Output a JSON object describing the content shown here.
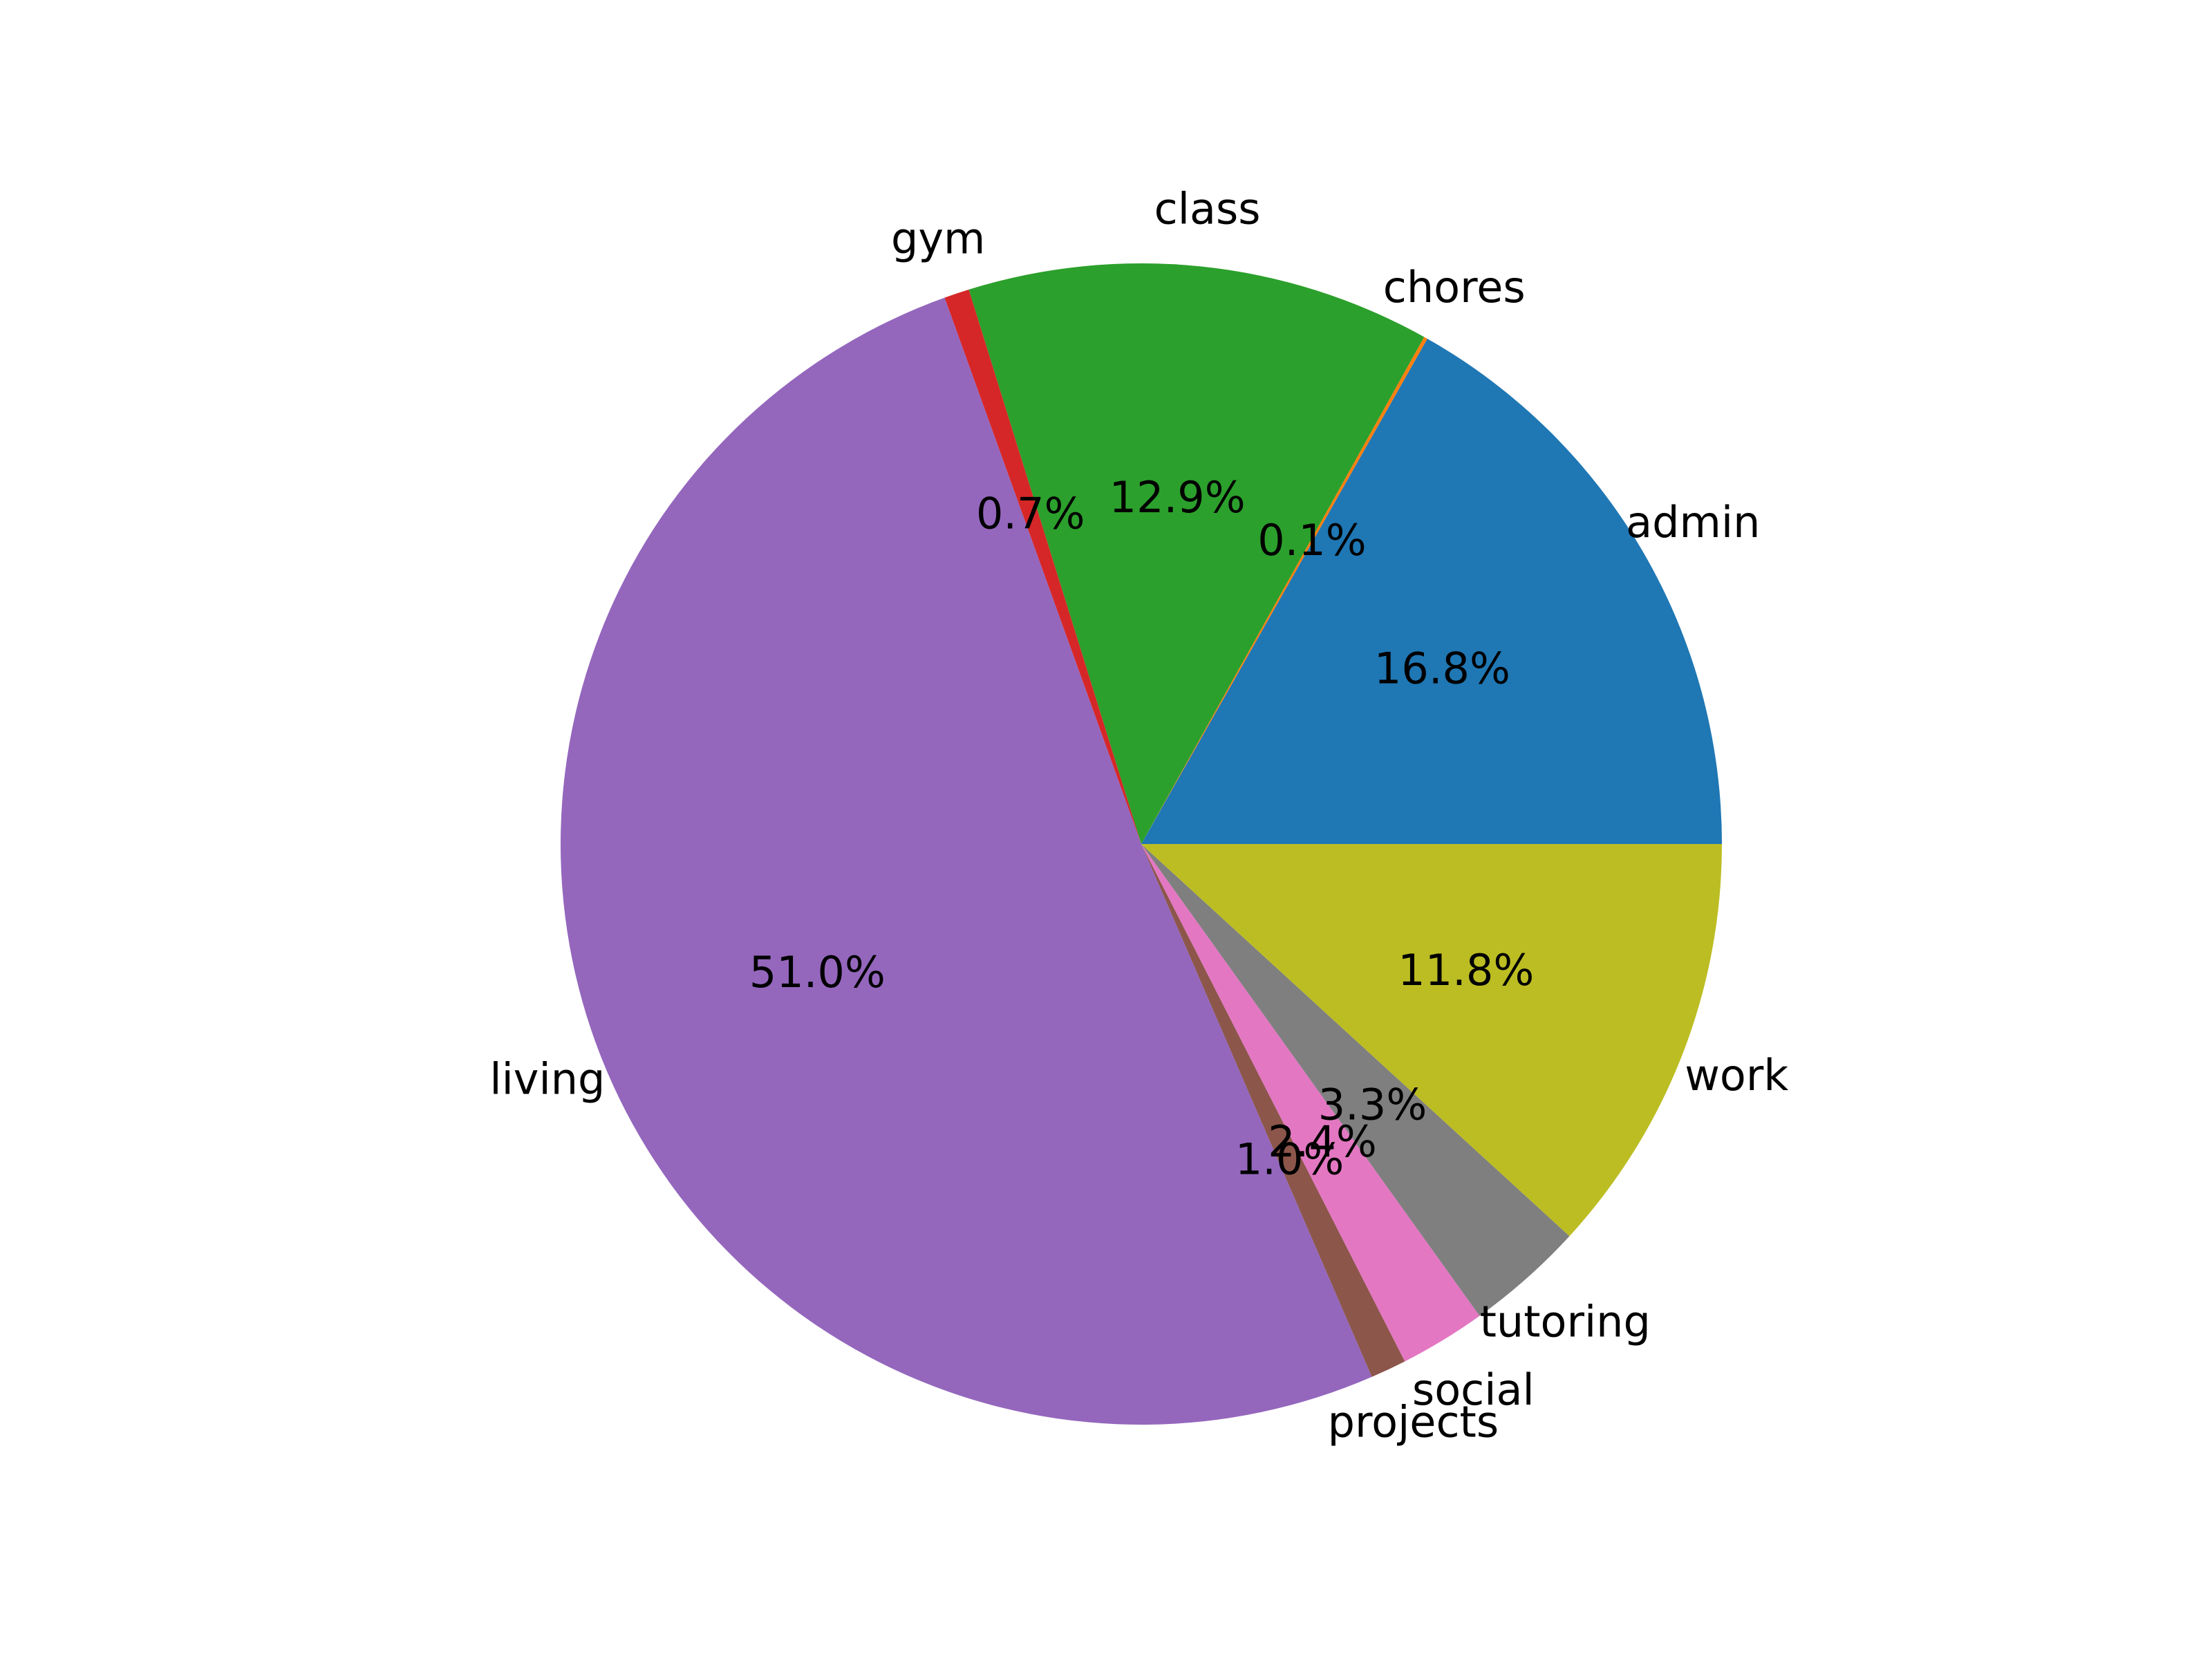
{
  "chart_data": {
    "type": "pie",
    "start_angle_deg": 0,
    "direction": "counterclockwise",
    "categories": [
      "admin",
      "chores",
      "class",
      "gym",
      "living",
      "projects",
      "social",
      "tutoring",
      "work"
    ],
    "values": [
      16.8,
      0.1,
      12.9,
      0.7,
      51.0,
      1.0,
      2.4,
      3.3,
      11.8
    ],
    "value_labels": [
      "16.8%",
      "0.1%",
      "12.9%",
      "0.7%",
      "51.0%",
      "1.0%",
      "2.4%",
      "3.3%",
      "11.8%"
    ],
    "colors": [
      "#1f77b4",
      "#ff7f0e",
      "#2ca02c",
      "#d62728",
      "#9467bd",
      "#8c564b",
      "#e377c2",
      "#7f7f7f",
      "#bcbd22"
    ],
    "legend": "none"
  }
}
